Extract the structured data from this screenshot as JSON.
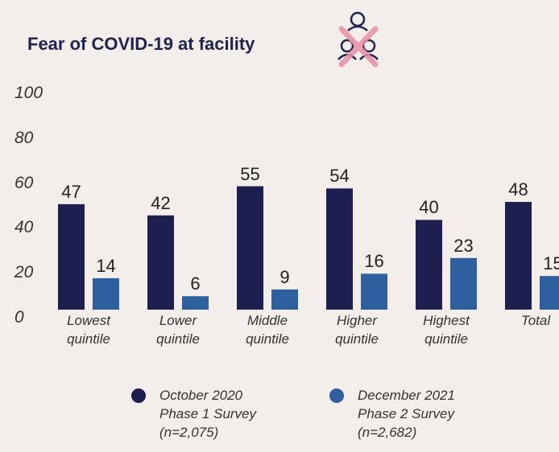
{
  "chart_data": {
    "type": "bar",
    "title": "Fear of COVID-19 at facility",
    "categories": [
      "Lowest quintile",
      "Lower quintile",
      "Middle quintile",
      "Higher quintile",
      "Highest quintile",
      "Total"
    ],
    "series": [
      {
        "name": "October 2020 Phase 1 Survey (n=2,075)",
        "color": "#1c1f4f",
        "values": [
          47,
          42,
          55,
          54,
          40,
          48
        ]
      },
      {
        "name": "December 2021 Phase 2 Survey (n=2,682)",
        "color": "#2e5f9e",
        "values": [
          14,
          6,
          9,
          16,
          23,
          15
        ]
      }
    ],
    "ylim": [
      0,
      100
    ],
    "yticks": [
      0,
      20,
      40,
      60,
      80,
      100
    ],
    "grid": false
  }
}
